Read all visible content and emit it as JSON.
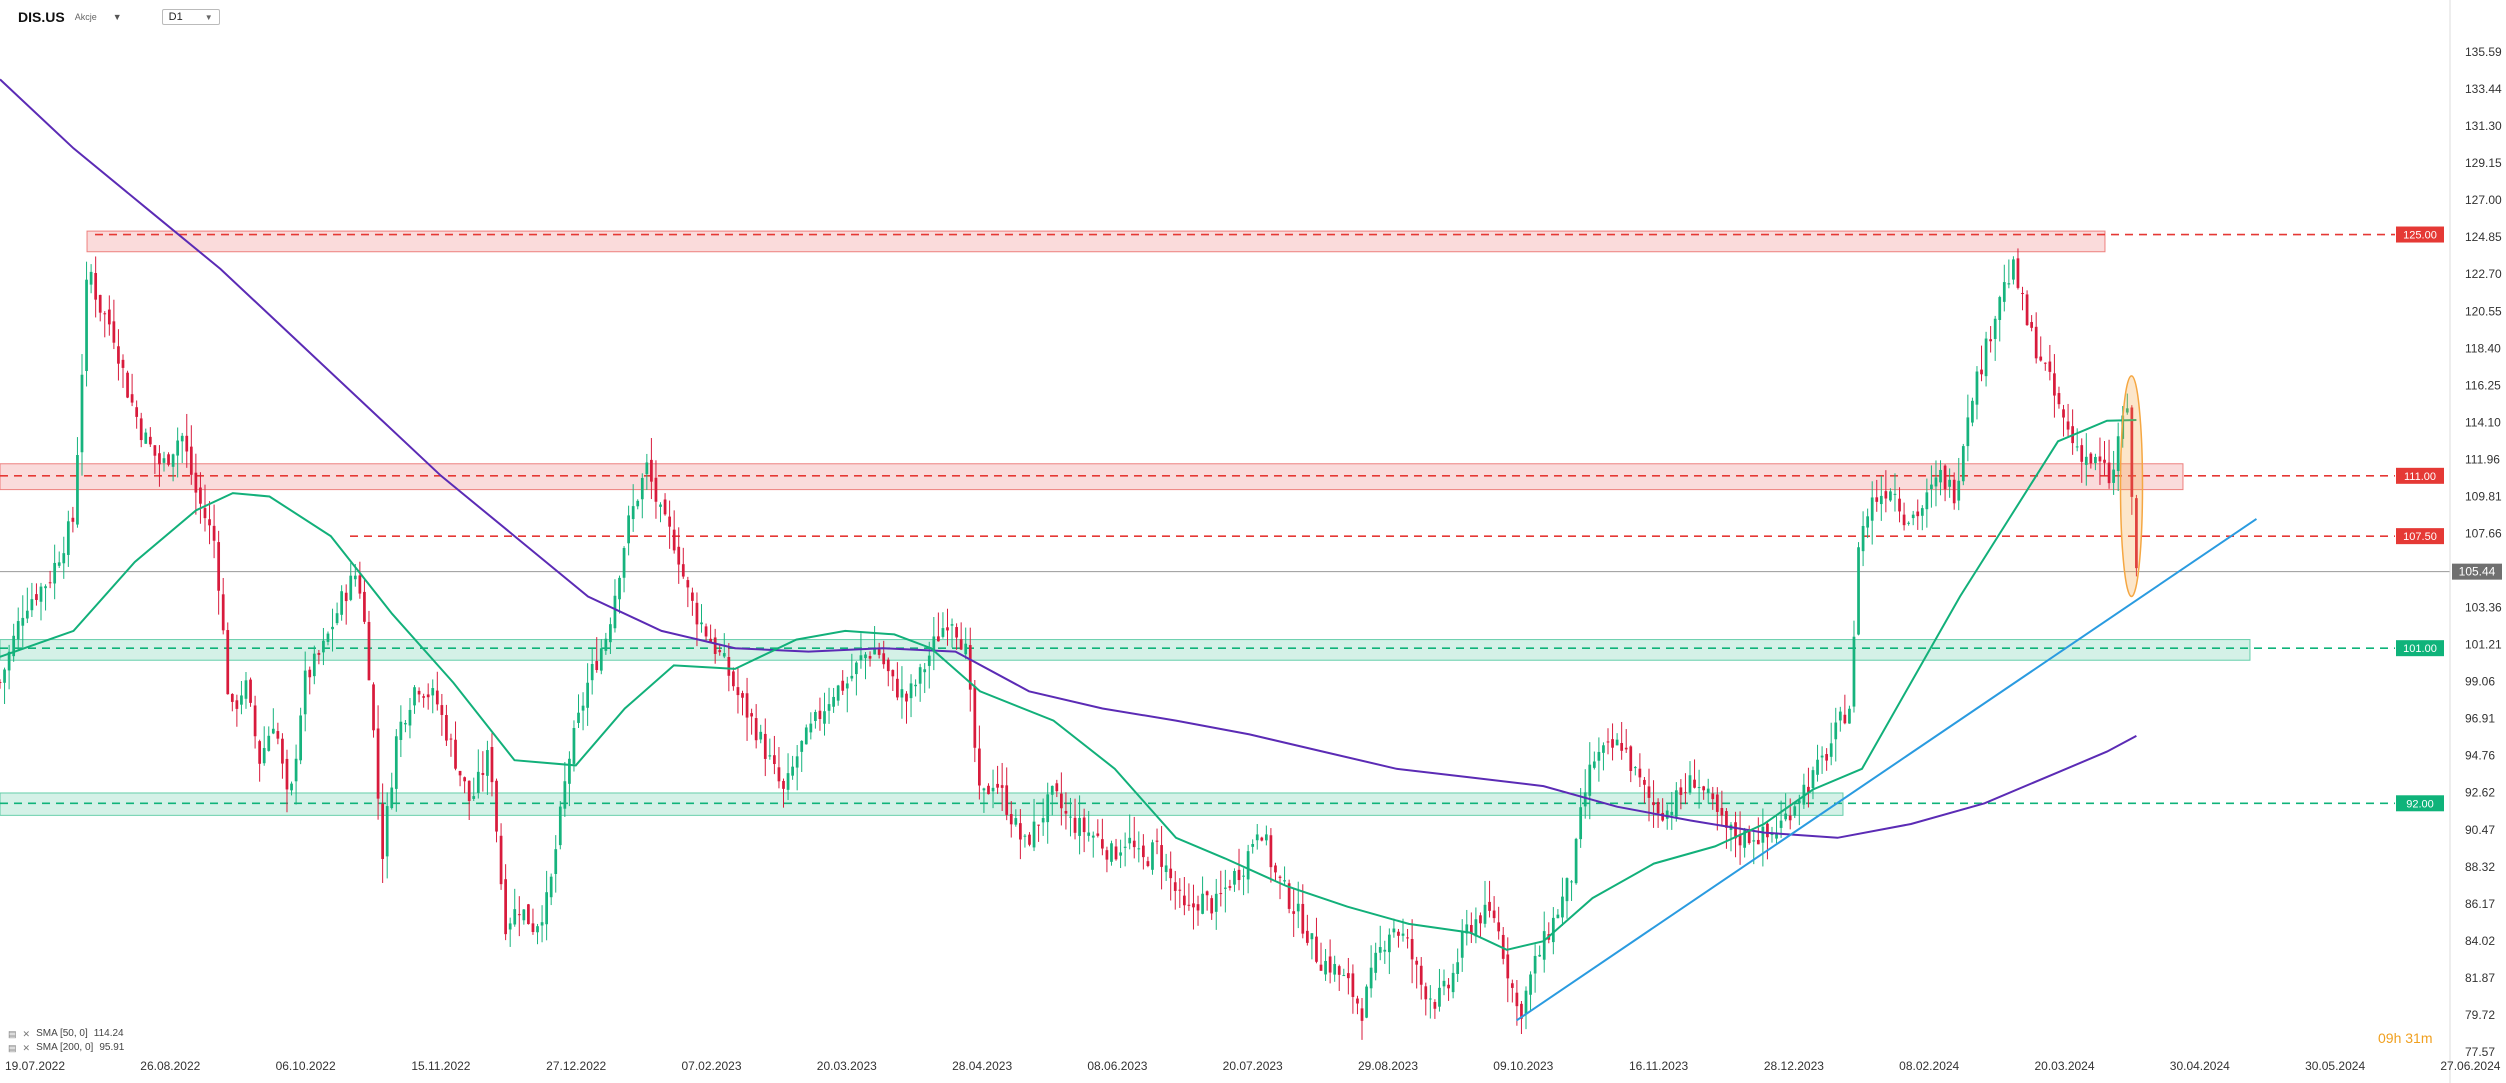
{
  "header": {
    "symbol": "DIS.US",
    "symbol_type": "Akcje",
    "timeframe": "D1"
  },
  "legend": {
    "items": [
      {
        "label": "SMA [50, 0]",
        "value": "114.24",
        "color": "#12b07a"
      },
      {
        "label": "SMA [200, 0]",
        "value": "95.91",
        "color": "#5b2bb5"
      }
    ]
  },
  "countdown": "09h 31m",
  "chart_data": {
    "type": "candlestick",
    "title": "",
    "y_ticks": [
      "135.59",
      "133.44",
      "131.30",
      "129.15",
      "127.00",
      "124.85",
      "122.70",
      "120.55",
      "118.40",
      "116.25",
      "114.10",
      "111.96",
      "109.81",
      "107.66",
      "105.51",
      "103.36",
      "101.21",
      "99.06",
      "96.91",
      "94.76",
      "92.62",
      "90.47",
      "88.32",
      "86.17",
      "84.02",
      "81.87",
      "79.72",
      "77.57"
    ],
    "ylim": [
      77.57,
      137.0
    ],
    "x_ticks": [
      "19.07.2022",
      "26.08.2022",
      "06.10.2022",
      "15.11.2022",
      "27.12.2022",
      "07.02.2023",
      "20.03.2023",
      "28.04.2023",
      "08.06.2023",
      "20.07.2023",
      "29.08.2023",
      "09.10.2023",
      "16.11.2023",
      "28.12.2023",
      "08.02.2024",
      "20.03.2024",
      "30.04.2024",
      "30.05.2024",
      "27.06.2024"
    ],
    "current_price": {
      "value": 105.44,
      "label": "105.44",
      "color": "#707070"
    },
    "levels": [
      {
        "value": 125.0,
        "label": "125.00",
        "color": "#e53935"
      },
      {
        "value": 111.0,
        "label": "111.00",
        "color": "#e53935"
      },
      {
        "value": 107.5,
        "label": "107.50",
        "color": "#e53935"
      },
      {
        "value": 101.0,
        "label": "101.00",
        "color": "#0fb37a"
      },
      {
        "value": 92.0,
        "label": "92.00",
        "color": "#0fb37a"
      }
    ],
    "zones": [
      {
        "from": "26.08.2022",
        "to": "20.03.2024",
        "low": 124.0,
        "high": 125.2,
        "color": "#e53935"
      },
      {
        "from": "19.07.2022",
        "to": "30.04.2024",
        "low": 110.2,
        "high": 111.7,
        "color": "#e53935"
      },
      {
        "from": "19.07.2022",
        "to": "30.05.2024",
        "low": 100.3,
        "high": 101.5,
        "color": "#0fb37a"
      },
      {
        "from": "19.07.2022",
        "to": "08.02.2024",
        "low": 91.3,
        "high": 92.6,
        "color": "#0fb37a"
      }
    ],
    "trendline": {
      "color": "#2a9be0",
      "points": [
        [
          0.619,
          79.4
        ],
        [
          0.921,
          108.5
        ]
      ]
    },
    "highlight": {
      "color": "#f5a742",
      "x": 0.87,
      "y_low": 104.0,
      "y_high": 116.8
    },
    "candles": {
      "bull_color": "#16b37d",
      "bear_color": "#d81b3c",
      "count": 470,
      "x_start": 0.0,
      "x_end": 0.872,
      "anchors": [
        [
          0.0,
          99.0
        ],
        [
          0.01,
          103.5
        ],
        [
          0.02,
          105.0
        ],
        [
          0.03,
          108.5
        ],
        [
          0.036,
          123.5
        ],
        [
          0.04,
          121.0
        ],
        [
          0.046,
          119.5
        ],
        [
          0.052,
          116.0
        ],
        [
          0.058,
          113.5
        ],
        [
          0.066,
          111.5
        ],
        [
          0.074,
          113.5
        ],
        [
          0.08,
          110.0
        ],
        [
          0.088,
          107.0
        ],
        [
          0.094,
          97.0
        ],
        [
          0.1,
          99.0
        ],
        [
          0.106,
          94.5
        ],
        [
          0.112,
          97.0
        ],
        [
          0.118,
          91.5
        ],
        [
          0.124,
          99.0
        ],
        [
          0.132,
          101.0
        ],
        [
          0.14,
          104.0
        ],
        [
          0.146,
          105.5
        ],
        [
          0.15,
          101.0
        ],
        [
          0.156,
          89.0
        ],
        [
          0.162,
          96.0
        ],
        [
          0.17,
          99.0
        ],
        [
          0.178,
          98.0
        ],
        [
          0.186,
          94.5
        ],
        [
          0.192,
          92.0
        ],
        [
          0.2,
          95.0
        ],
        [
          0.206,
          85.0
        ],
        [
          0.212,
          86.0
        ],
        [
          0.218,
          84.8
        ],
        [
          0.224,
          86.5
        ],
        [
          0.232,
          94.5
        ],
        [
          0.24,
          99.0
        ],
        [
          0.248,
          102.0
        ],
        [
          0.256,
          108.0
        ],
        [
          0.264,
          111.5
        ],
        [
          0.27,
          108.5
        ],
        [
          0.276,
          107.0
        ],
        [
          0.28,
          104.5
        ],
        [
          0.284,
          103.0
        ],
        [
          0.29,
          101.5
        ],
        [
          0.296,
          100.0
        ],
        [
          0.302,
          98.0
        ],
        [
          0.308,
          96.5
        ],
        [
          0.314,
          94.5
        ],
        [
          0.32,
          92.5
        ],
        [
          0.326,
          95.0
        ],
        [
          0.332,
          96.5
        ],
        [
          0.34,
          98.5
        ],
        [
          0.346,
          99.0
        ],
        [
          0.352,
          100.5
        ],
        [
          0.358,
          101.0
        ],
        [
          0.364,
          99.0
        ],
        [
          0.37,
          98.0
        ],
        [
          0.376,
          99.5
        ],
        [
          0.382,
          101.5
        ],
        [
          0.388,
          103.0
        ],
        [
          0.394,
          101.0
        ],
        [
          0.4,
          92.0
        ],
        [
          0.406,
          93.5
        ],
        [
          0.412,
          91.5
        ],
        [
          0.418,
          89.5
        ],
        [
          0.424,
          91.0
        ],
        [
          0.43,
          92.5
        ],
        [
          0.436,
          91.0
        ],
        [
          0.442,
          90.5
        ],
        [
          0.448,
          90.0
        ],
        [
          0.454,
          89.0
        ],
        [
          0.46,
          90.0
        ],
        [
          0.466,
          88.5
        ],
        [
          0.472,
          89.5
        ],
        [
          0.478,
          87.5
        ],
        [
          0.484,
          85.5
        ],
        [
          0.49,
          86.5
        ],
        [
          0.496,
          86.0
        ],
        [
          0.502,
          87.5
        ],
        [
          0.508,
          88.5
        ],
        [
          0.514,
          91.0
        ],
        [
          0.52,
          88.0
        ],
        [
          0.526,
          86.5
        ],
        [
          0.532,
          85.0
        ],
        [
          0.538,
          83.0
        ],
        [
          0.544,
          82.5
        ],
        [
          0.55,
          81.5
        ],
        [
          0.556,
          80.0
        ],
        [
          0.562,
          83.0
        ],
        [
          0.568,
          85.0
        ],
        [
          0.574,
          84.0
        ],
        [
          0.58,
          81.5
        ],
        [
          0.586,
          80.5
        ],
        [
          0.592,
          81.5
        ],
        [
          0.598,
          84.5
        ],
        [
          0.604,
          85.5
        ],
        [
          0.61,
          85.5
        ],
        [
          0.616,
          82.0
        ],
        [
          0.62,
          79.6
        ],
        [
          0.626,
          82.5
        ],
        [
          0.632,
          84.5
        ],
        [
          0.638,
          86.5
        ],
        [
          0.642,
          88.0
        ],
        [
          0.646,
          92.0
        ],
        [
          0.65,
          94.5
        ],
        [
          0.656,
          95.0
        ],
        [
          0.662,
          95.5
        ],
        [
          0.668,
          93.5
        ],
        [
          0.674,
          92.0
        ],
        [
          0.68,
          91.5
        ],
        [
          0.686,
          92.5
        ],
        [
          0.692,
          93.5
        ],
        [
          0.698,
          92.0
        ],
        [
          0.704,
          90.5
        ],
        [
          0.71,
          90.0
        ],
        [
          0.716,
          90.2
        ],
        [
          0.722,
          90.0
        ],
        [
          0.728,
          91.0
        ],
        [
          0.734,
          92.5
        ],
        [
          0.74,
          93.5
        ],
        [
          0.746,
          95.0
        ],
        [
          0.752,
          97.0
        ],
        [
          0.756,
          98.0
        ],
        [
          0.758,
          107.0
        ],
        [
          0.764,
          109.5
        ],
        [
          0.772,
          110.5
        ],
        [
          0.778,
          108.5
        ],
        [
          0.784,
          109.0
        ],
        [
          0.792,
          111.0
        ],
        [
          0.798,
          110.0
        ],
        [
          0.804,
          115.5
        ],
        [
          0.81,
          118.0
        ],
        [
          0.816,
          121.5
        ],
        [
          0.822,
          123.0
        ],
        [
          0.828,
          119.5
        ],
        [
          0.834,
          117.5
        ],
        [
          0.84,
          115.0
        ],
        [
          0.846,
          113.0
        ],
        [
          0.852,
          112.0
        ],
        [
          0.858,
          111.5
        ],
        [
          0.862,
          110.5
        ],
        [
          0.866,
          114.5
        ],
        [
          0.868,
          115.0
        ],
        [
          0.872,
          105.4
        ]
      ]
    },
    "sma50": [
      [
        0.0,
        100.5
      ],
      [
        0.03,
        102.0
      ],
      [
        0.055,
        106.0
      ],
      [
        0.08,
        109.0
      ],
      [
        0.095,
        110.0
      ],
      [
        0.11,
        109.8
      ],
      [
        0.135,
        107.5
      ],
      [
        0.16,
        103.0
      ],
      [
        0.185,
        99.0
      ],
      [
        0.21,
        94.5
      ],
      [
        0.235,
        94.2
      ],
      [
        0.255,
        97.5
      ],
      [
        0.275,
        100.0
      ],
      [
        0.3,
        99.8
      ],
      [
        0.325,
        101.5
      ],
      [
        0.345,
        102.0
      ],
      [
        0.365,
        101.8
      ],
      [
        0.38,
        101.0
      ],
      [
        0.4,
        98.5
      ],
      [
        0.43,
        96.8
      ],
      [
        0.455,
        94.0
      ],
      [
        0.48,
        90.0
      ],
      [
        0.5,
        88.8
      ],
      [
        0.525,
        87.2
      ],
      [
        0.55,
        86.0
      ],
      [
        0.575,
        85.0
      ],
      [
        0.6,
        84.5
      ],
      [
        0.615,
        83.5
      ],
      [
        0.63,
        84.0
      ],
      [
        0.65,
        86.5
      ],
      [
        0.675,
        88.5
      ],
      [
        0.7,
        89.5
      ],
      [
        0.72,
        90.8
      ],
      [
        0.74,
        92.8
      ],
      [
        0.76,
        94.0
      ],
      [
        0.78,
        99.0
      ],
      [
        0.8,
        104.0
      ],
      [
        0.82,
        108.5
      ],
      [
        0.84,
        113.0
      ],
      [
        0.86,
        114.2
      ],
      [
        0.872,
        114.24
      ]
    ],
    "sma200": [
      [
        0.0,
        134.0
      ],
      [
        0.03,
        130.0
      ],
      [
        0.06,
        126.5
      ],
      [
        0.09,
        123.0
      ],
      [
        0.12,
        119.0
      ],
      [
        0.15,
        115.0
      ],
      [
        0.18,
        111.0
      ],
      [
        0.21,
        107.5
      ],
      [
        0.24,
        104.0
      ],
      [
        0.27,
        102.0
      ],
      [
        0.3,
        101.0
      ],
      [
        0.33,
        100.8
      ],
      [
        0.36,
        101.0
      ],
      [
        0.39,
        100.8
      ],
      [
        0.42,
        98.5
      ],
      [
        0.45,
        97.5
      ],
      [
        0.48,
        96.8
      ],
      [
        0.51,
        96.0
      ],
      [
        0.54,
        95.0
      ],
      [
        0.57,
        94.0
      ],
      [
        0.6,
        93.5
      ],
      [
        0.63,
        93.0
      ],
      [
        0.66,
        91.8
      ],
      [
        0.69,
        91.0
      ],
      [
        0.72,
        90.3
      ],
      [
        0.75,
        90.0
      ],
      [
        0.78,
        90.8
      ],
      [
        0.81,
        92.0
      ],
      [
        0.84,
        93.8
      ],
      [
        0.86,
        95.0
      ],
      [
        0.872,
        95.91
      ]
    ]
  }
}
